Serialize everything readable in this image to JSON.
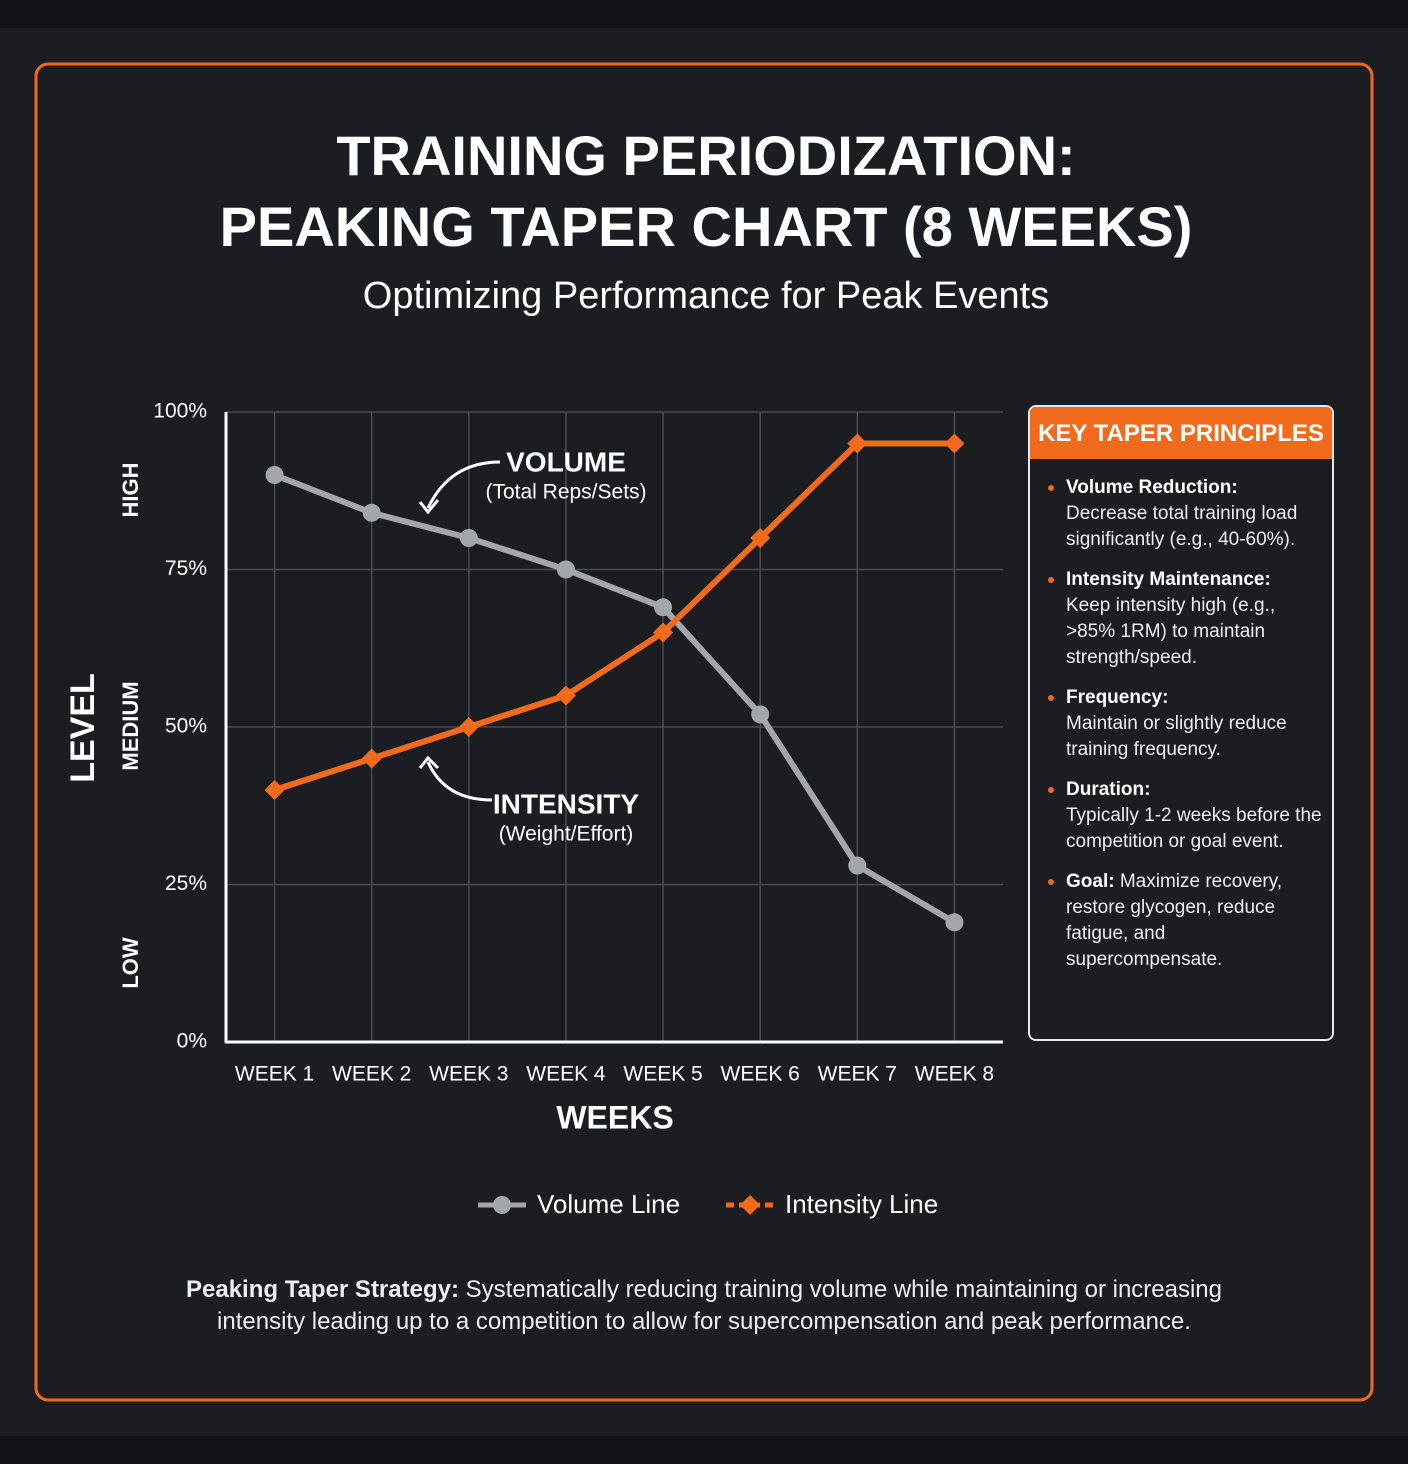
{
  "chart_data": {
    "type": "line",
    "title": [
      "TRAINING PERIODIZATION:",
      "PEAKING TAPER CHART (8 WEEKS)"
    ],
    "subtitle": "Optimizing Performance for Peak Events",
    "y_label": "LEVEL",
    "y_zones": [
      "HIGH",
      "MEDIUM",
      "LOW"
    ],
    "x_label": "WEEKS",
    "categories": [
      "WEEK 1",
      "WEEK 2",
      "WEEK 3",
      "WEEK 4",
      "WEEK 5",
      "WEEK 6",
      "WEEK 7",
      "WEEK 8"
    ],
    "series": [
      {
        "name": "Volume Line",
        "color": "#a3a6ab",
        "marker": "circle",
        "values": [
          90,
          84,
          80,
          75,
          69,
          52,
          28,
          19
        ]
      },
      {
        "name": "Intensity Line",
        "color": "#f26b1d",
        "marker": "diamond",
        "values": [
          40,
          45,
          50,
          55,
          65,
          80,
          95,
          95
        ]
      }
    ],
    "annotations": [
      {
        "title": "VOLUME",
        "text": "(Total Reps/Sets)"
      },
      {
        "title": "INTENSITY",
        "text": "(Weight/Effort)"
      }
    ],
    "ylim": [
      0,
      100
    ],
    "yticks": [
      {
        "value": 0,
        "label": "0%"
      },
      {
        "value": 25,
        "label": "25%"
      },
      {
        "value": 50,
        "label": "50%"
      },
      {
        "value": 75,
        "label": "75%"
      },
      {
        "value": 100,
        "label": "100%"
      }
    ],
    "grid": true,
    "legend": "bottom"
  },
  "principles_panel": {
    "title": "KEY TAPER PRINCIPLES",
    "items": [
      {
        "heading": "Volume Reduction:",
        "text": "Decrease total training load significantly (e.g., 40-60%)."
      },
      {
        "heading": "Intensity Maintenance:",
        "text": "Keep intensity high (e.g., >85% 1RM) to maintain strength/speed."
      },
      {
        "heading": "Frequency:",
        "text": "Maintain or slightly reduce training frequency."
      },
      {
        "heading": "Duration:",
        "text": "Typically 1-2 weeks before the competition or goal event."
      },
      {
        "heading": "Goal:",
        "text": "Maximize recovery, restore glycogen, reduce fatigue, and supercompensate."
      }
    ]
  },
  "footer": {
    "heading": "Peaking Taper Strategy:",
    "text": "Systematically reducing training volume while maintaining or increasing intensity leading up to a competition to allow for supercompensation and peak performance."
  }
}
